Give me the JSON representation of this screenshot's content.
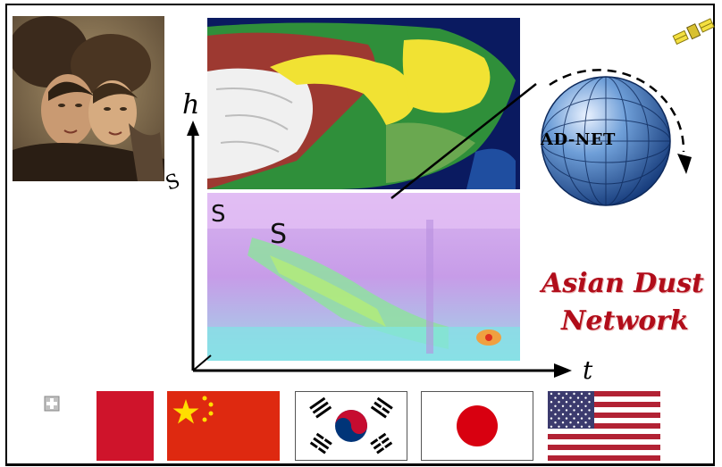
{
  "axes": {
    "y_label": "h",
    "x_label": "t",
    "s_marker": "S",
    "s_marker_small": "S",
    "side_marker": "S"
  },
  "globe": {
    "label": "AD-NET"
  },
  "title": {
    "line1": "Asian Dust",
    "line2": "Network"
  },
  "colors": {
    "title": "#b10d1a",
    "globe": "#3a6fb5",
    "ocean": "#0a1a60",
    "dust_plume": "#f1e233",
    "china_red": "#de2910",
    "japan_red": "#d80010",
    "us_blue": "#3c3b6e",
    "us_red": "#b22234",
    "malta_red": "#cf142b"
  },
  "flags": [
    "malta-flag",
    "china-flag",
    "korea-flag",
    "japan-flag",
    "usa-flag"
  ]
}
